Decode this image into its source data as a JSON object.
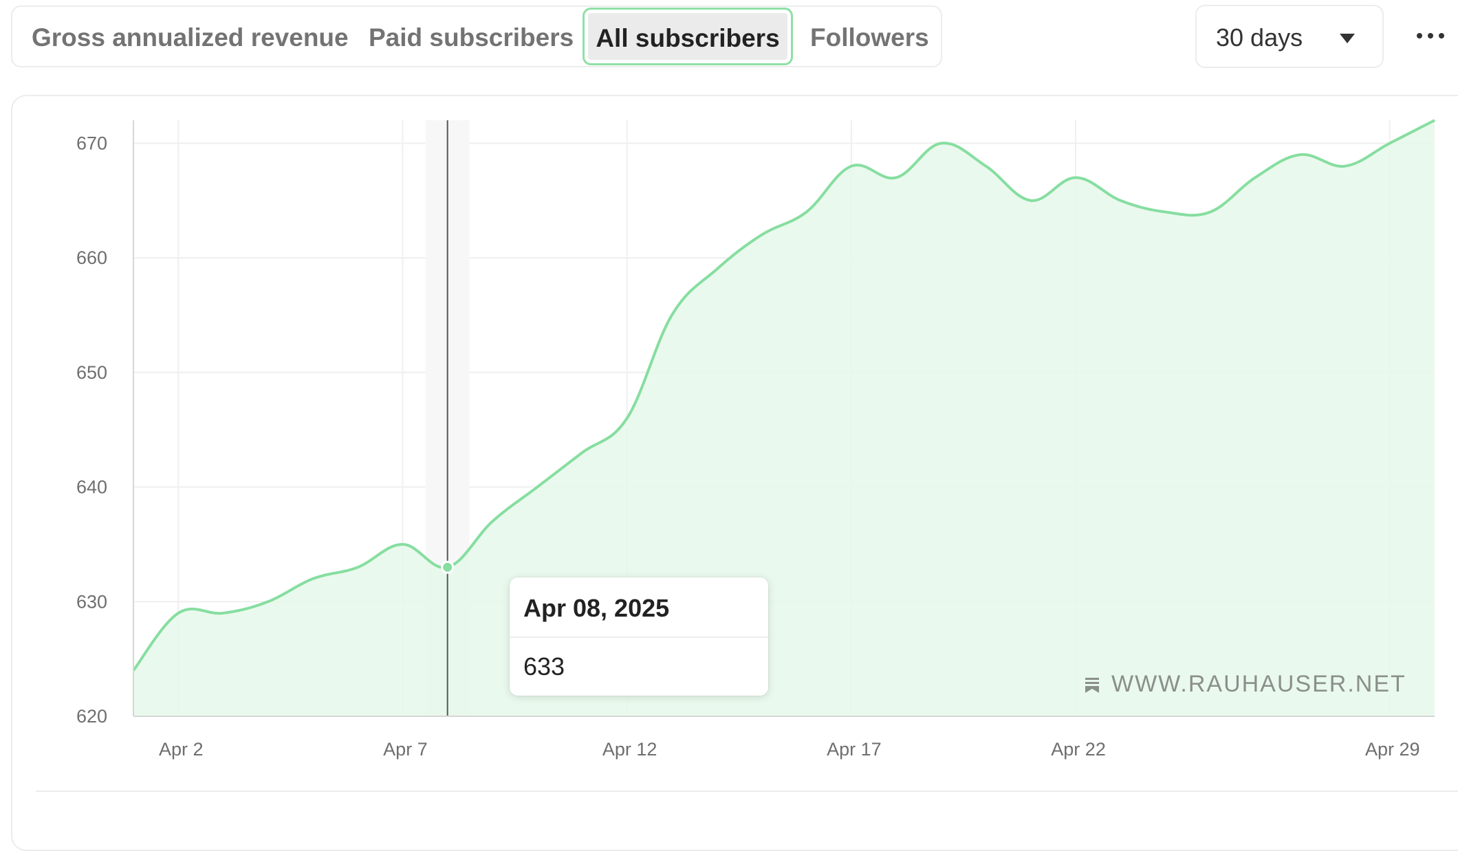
{
  "tabs": [
    {
      "label": "Gross annualized revenue",
      "active": false
    },
    {
      "label": "Paid subscribers",
      "active": false
    },
    {
      "label": "All subscribers",
      "active": true
    },
    {
      "label": "Followers",
      "active": false
    }
  ],
  "range_select": {
    "value": "30 days"
  },
  "more_menu": {
    "icon": "more-horizontal-icon"
  },
  "tooltip": {
    "date": "Apr 08, 2025",
    "value": "633"
  },
  "watermark": {
    "text": "WWW.RAUHAUSER.NET",
    "icon": "bookmark-icon"
  },
  "colors": {
    "line": "#86dea0",
    "fill": "#e6f8ea",
    "hover_band": "#f7f7f7",
    "grid": "#efefef",
    "axis": "#d6d6d6"
  },
  "chart_data": {
    "type": "area",
    "x": [
      "Apr 1",
      "Apr 2",
      "Apr 3",
      "Apr 4",
      "Apr 5",
      "Apr 6",
      "Apr 7",
      "Apr 8",
      "Apr 9",
      "Apr 10",
      "Apr 11",
      "Apr 12",
      "Apr 13",
      "Apr 14",
      "Apr 15",
      "Apr 16",
      "Apr 17",
      "Apr 18",
      "Apr 19",
      "Apr 20",
      "Apr 21",
      "Apr 22",
      "Apr 23",
      "Apr 24",
      "Apr 25",
      "Apr 26",
      "Apr 27",
      "Apr 28",
      "Apr 29",
      "Apr 30"
    ],
    "series": [
      {
        "values": [
          624,
          629,
          629,
          630,
          632,
          633,
          635,
          633,
          637,
          640,
          643,
          646,
          655,
          659,
          662,
          664,
          668,
          667,
          670,
          668,
          665,
          667,
          665,
          664,
          664,
          667,
          669,
          668,
          670,
          672
        ]
      }
    ],
    "x_ticks": [
      "Apr 2",
      "Apr 7",
      "Apr 12",
      "Apr 17",
      "Apr 22",
      "Apr 29"
    ],
    "y_ticks": [
      620,
      630,
      640,
      650,
      660,
      670
    ],
    "ylim": [
      620,
      672
    ],
    "grid": true,
    "highlight": {
      "x": "Apr 8",
      "value": 633
    }
  }
}
